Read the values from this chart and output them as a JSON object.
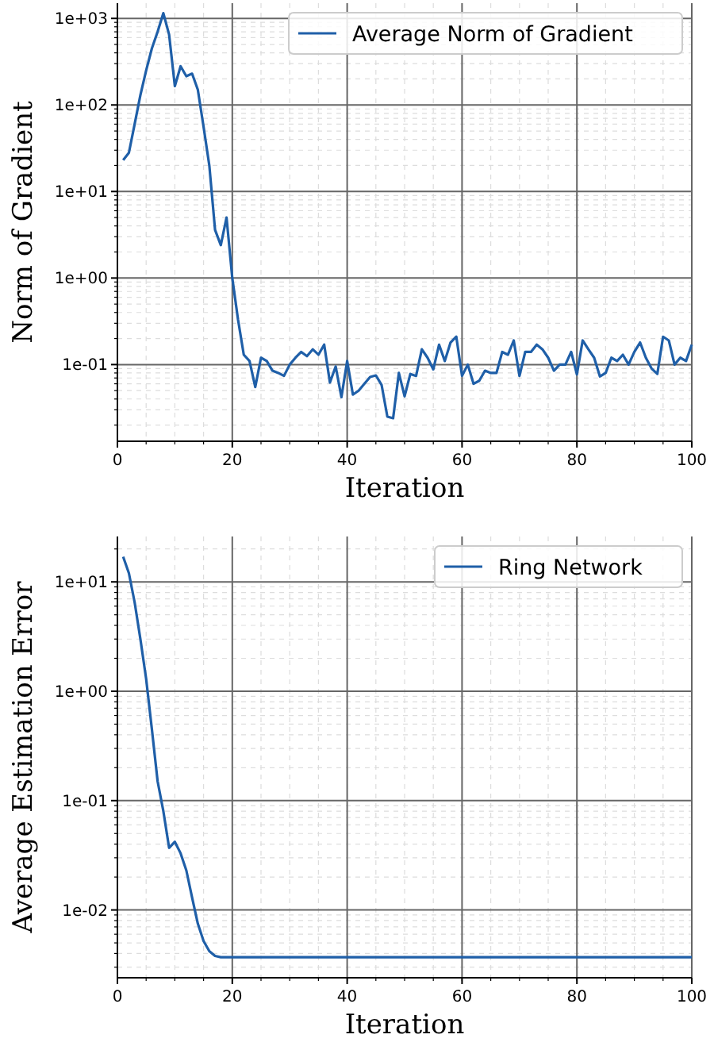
{
  "chart_data": [
    {
      "type": "line",
      "xlabel": "Iteration",
      "ylabel": "Norm of Gradient",
      "log": "y",
      "grid": true,
      "legend": "top right",
      "xlim": [
        0,
        100
      ],
      "ylim": [
        0.013,
        1500
      ],
      "xticks": [
        0,
        20,
        40,
        60,
        80,
        100
      ],
      "yticks": [
        {
          "value": 0.1,
          "label": "1e-01"
        },
        {
          "value": 1,
          "label": "1e+00"
        },
        {
          "value": 10,
          "label": "1e+01"
        },
        {
          "value": 100,
          "label": "1e+02"
        },
        {
          "value": 1000,
          "label": "1e+03"
        }
      ],
      "series": [
        {
          "name": "Average Norm of Gradient",
          "color": "#1f5fa8",
          "x": [
            1,
            2,
            3,
            4,
            5,
            6,
            7,
            8,
            9,
            10,
            11,
            12,
            13,
            14,
            15,
            16,
            17,
            18,
            19,
            20,
            21,
            22,
            23,
            24,
            25,
            26,
            27,
            28,
            29,
            30,
            31,
            32,
            33,
            34,
            35,
            36,
            37,
            38,
            39,
            40,
            41,
            42,
            43,
            44,
            45,
            46,
            47,
            48,
            49,
            50,
            51,
            52,
            53,
            54,
            55,
            56,
            57,
            58,
            59,
            60,
            61,
            62,
            63,
            64,
            65,
            66,
            67,
            68,
            69,
            70,
            71,
            72,
            73,
            74,
            75,
            76,
            77,
            78,
            79,
            80,
            81,
            82,
            83,
            84,
            85,
            86,
            87,
            88,
            89,
            90,
            91,
            92,
            93,
            94,
            95,
            96,
            97,
            98,
            99,
            100
          ],
          "values": [
            23,
            28,
            60,
            130,
            250,
            450,
            700,
            1150,
            650,
            165,
            280,
            215,
            230,
            150,
            56,
            20,
            3.6,
            2.4,
            5,
            1,
            0.33,
            0.13,
            0.11,
            0.055,
            0.12,
            0.11,
            0.085,
            0.08,
            0.074,
            0.1,
            0.12,
            0.14,
            0.125,
            0.15,
            0.13,
            0.17,
            0.062,
            0.095,
            0.042,
            0.11,
            0.045,
            0.05,
            0.06,
            0.072,
            0.075,
            0.058,
            0.025,
            0.024,
            0.08,
            0.043,
            0.078,
            0.074,
            0.15,
            0.12,
            0.088,
            0.17,
            0.11,
            0.18,
            0.21,
            0.074,
            0.1,
            0.06,
            0.065,
            0.085,
            0.08,
            0.08,
            0.14,
            0.13,
            0.19,
            0.074,
            0.14,
            0.14,
            0.17,
            0.15,
            0.12,
            0.085,
            0.1,
            0.1,
            0.14,
            0.077,
            0.19,
            0.15,
            0.12,
            0.073,
            0.08,
            0.12,
            0.11,
            0.13,
            0.1,
            0.14,
            0.18,
            0.12,
            0.09,
            0.078,
            0.21,
            0.19,
            0.1,
            0.12,
            0.11,
            0.17
          ]
        }
      ]
    },
    {
      "type": "line",
      "xlabel": "Iteration",
      "ylabel": "Average Estimation Error",
      "log": "y",
      "grid": true,
      "legend": "top right",
      "xlim": [
        0,
        100
      ],
      "ylim": [
        0.0024,
        26
      ],
      "xticks": [
        0,
        20,
        40,
        60,
        80,
        100
      ],
      "yticks": [
        {
          "value": 0.01,
          "label": "1e-02"
        },
        {
          "value": 0.1,
          "label": "1e-01"
        },
        {
          "value": 1,
          "label": "1e+00"
        },
        {
          "value": 10,
          "label": "1e+01"
        }
      ],
      "series": [
        {
          "name": "Ring Network",
          "color": "#1f5fa8",
          "x": [
            1,
            2,
            3,
            4,
            5,
            6,
            7,
            8,
            9,
            10,
            11,
            12,
            13,
            14,
            15,
            16,
            17,
            18,
            20,
            30,
            40,
            50,
            60,
            70,
            80,
            90,
            100
          ],
          "values": [
            17,
            12,
            6.5,
            3,
            1.3,
            0.45,
            0.15,
            0.08,
            0.037,
            0.042,
            0.033,
            0.023,
            0.013,
            0.0075,
            0.0052,
            0.0042,
            0.0038,
            0.0037,
            0.0037,
            0.0037,
            0.0037,
            0.0037,
            0.0037,
            0.0037,
            0.0037,
            0.0037,
            0.0037
          ]
        }
      ]
    }
  ]
}
